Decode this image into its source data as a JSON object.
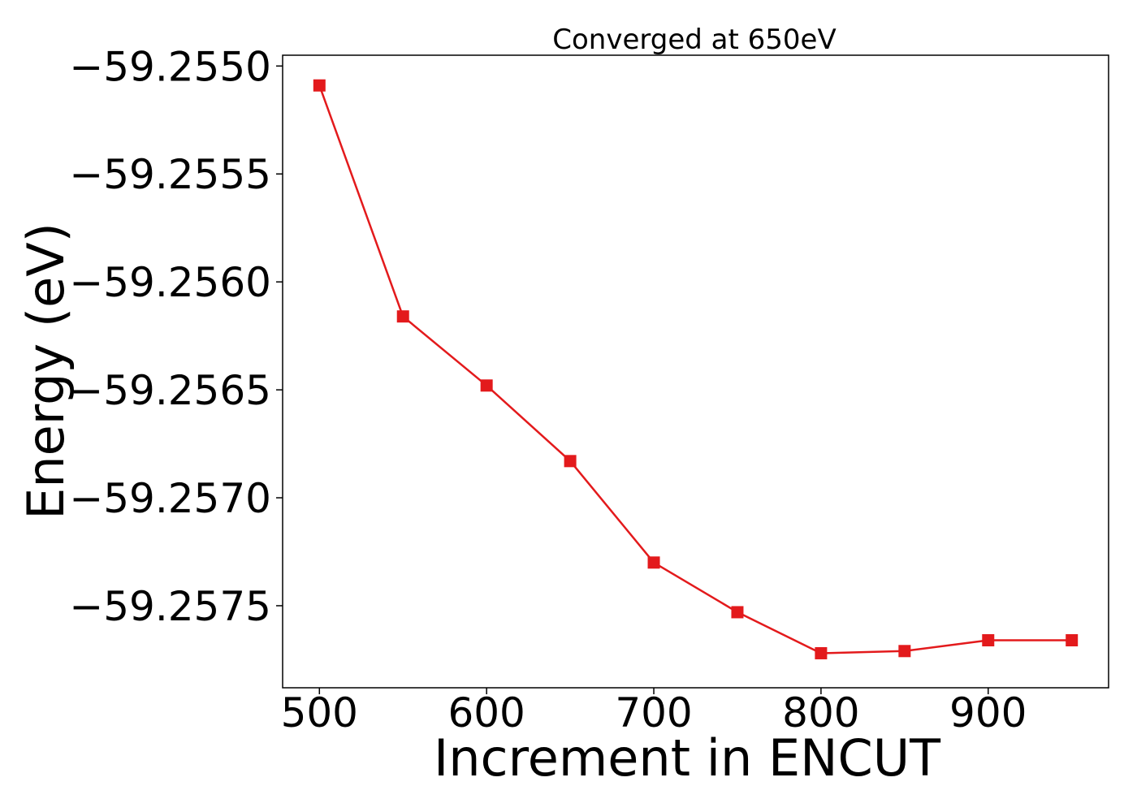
{
  "chart_data": {
    "type": "line",
    "title": "Converged at 650eV",
    "xlabel": "Increment in ENCUT",
    "ylabel": "Energy (eV)",
    "xlim": [
      478,
      972
    ],
    "ylim": [
      -59.25788,
      -59.25495
    ],
    "x_ticks": [
      500,
      600,
      700,
      800,
      900
    ],
    "x_tick_labels": [
      "500",
      "600",
      "700",
      "800",
      "900"
    ],
    "y_ticks": [
      -59.255,
      -59.2555,
      -59.256,
      -59.2565,
      -59.257,
      -59.2575
    ],
    "y_tick_labels": [
      "−59.2550",
      "−59.2555",
      "−59.2560",
      "−59.2565",
      "−59.2570",
      "−59.2575"
    ],
    "grid": false,
    "series": [
      {
        "color": "#e31a1c",
        "marker": "square",
        "x": [
          500,
          550,
          600,
          650,
          700,
          750,
          800,
          850,
          900,
          950
        ],
        "y": [
          -59.25509,
          -59.25616,
          -59.25648,
          -59.25683,
          -59.2573,
          -59.25753,
          -59.25772,
          -59.25771,
          -59.25766,
          -59.25766
        ]
      }
    ]
  }
}
